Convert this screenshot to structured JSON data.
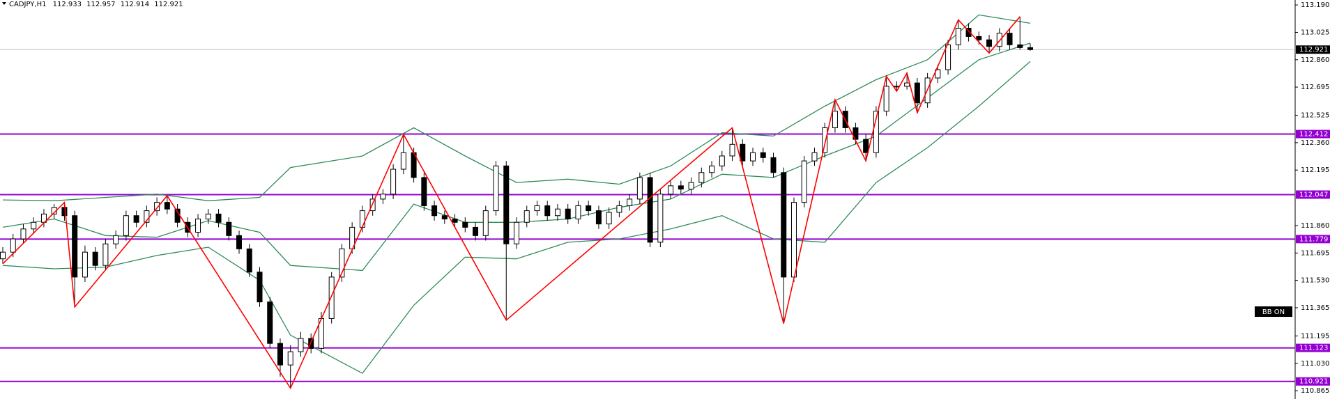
{
  "header": {
    "symbol": "CADJPY,H1",
    "quote": [
      112.933,
      112.957,
      112.914,
      112.921
    ]
  },
  "chart_data": {
    "type": "candlestick",
    "up_color": "#ffffff",
    "down_color": "#000000",
    "open": [
      111.66,
      111.7,
      111.78,
      111.84,
      111.88,
      111.93,
      111.97,
      111.92,
      111.55,
      111.7,
      111.62,
      111.75,
      111.8,
      111.92,
      111.88,
      111.95,
      112.0,
      111.96,
      111.88,
      111.82,
      111.9,
      111.93,
      111.88,
      111.8,
      111.72,
      111.58,
      111.4,
      111.15,
      111.02,
      111.1,
      111.18,
      111.12,
      111.3,
      111.55,
      111.72,
      111.85,
      111.95,
      112.02,
      112.05,
      112.2,
      112.3,
      112.15,
      111.98,
      111.92,
      111.9,
      111.88,
      111.85,
      111.8,
      111.95,
      112.22,
      111.75,
      111.88,
      111.95,
      111.98,
      111.92,
      111.96,
      111.9,
      111.98,
      111.95,
      111.87,
      111.94,
      111.98,
      112.02,
      112.15,
      111.76,
      112.05,
      112.1,
      112.08,
      112.12,
      112.18,
      112.22,
      112.28,
      112.35,
      112.25,
      112.3,
      112.27,
      112.18,
      111.55,
      112.0,
      112.25,
      112.3,
      112.45,
      112.55,
      112.45,
      112.38,
      112.3,
      112.55,
      112.7,
      112.7,
      112.72,
      112.6,
      112.75,
      112.8,
      112.95,
      113.05,
      113.0,
      112.98,
      112.94,
      113.02,
      112.95,
      112.933
    ],
    "high": [
      111.73,
      111.81,
      111.87,
      111.91,
      111.96,
      111.99,
      112.0,
      111.95,
      111.74,
      111.73,
      111.78,
      111.83,
      111.95,
      111.95,
      111.98,
      112.03,
      112.04,
      111.99,
      111.91,
      111.93,
      111.96,
      111.96,
      111.91,
      111.83,
      111.75,
      111.61,
      111.43,
      111.18,
      111.14,
      111.22,
      111.21,
      111.34,
      111.58,
      111.75,
      111.88,
      111.98,
      112.05,
      112.08,
      112.23,
      112.41,
      112.33,
      112.18,
      112.01,
      111.95,
      111.93,
      111.91,
      111.88,
      111.98,
      112.25,
      112.25,
      111.91,
      111.98,
      112.01,
      112.01,
      111.99,
      111.99,
      112.01,
      112.01,
      111.98,
      111.97,
      112.01,
      112.05,
      112.18,
      112.18,
      112.08,
      112.13,
      112.13,
      112.15,
      112.21,
      112.25,
      112.31,
      112.45,
      112.38,
      112.33,
      112.33,
      112.3,
      112.21,
      112.03,
      112.28,
      112.33,
      112.48,
      112.62,
      112.58,
      112.48,
      112.41,
      112.58,
      112.76,
      112.73,
      112.78,
      112.75,
      112.78,
      112.83,
      112.98,
      113.1,
      113.08,
      113.03,
      113.01,
      113.05,
      113.05,
      113.12,
      112.957
    ],
    "low": [
      111.63,
      111.67,
      111.75,
      111.81,
      111.85,
      111.9,
      111.89,
      111.37,
      111.52,
      111.59,
      111.59,
      111.72,
      111.77,
      111.85,
      111.85,
      111.92,
      111.93,
      111.85,
      111.79,
      111.79,
      111.87,
      111.85,
      111.77,
      111.69,
      111.55,
      111.37,
      111.12,
      110.95,
      110.88,
      111.07,
      111.09,
      111.09,
      111.27,
      111.52,
      111.69,
      111.82,
      111.92,
      111.99,
      112.02,
      112.17,
      112.12,
      111.95,
      111.89,
      111.87,
      111.85,
      111.82,
      111.77,
      111.77,
      111.92,
      111.29,
      111.72,
      111.85,
      111.92,
      111.89,
      111.89,
      111.87,
      111.87,
      111.92,
      111.84,
      111.84,
      111.91,
      111.95,
      111.99,
      111.73,
      111.73,
      112.02,
      112.05,
      112.05,
      112.09,
      112.15,
      112.19,
      112.25,
      112.22,
      112.22,
      112.24,
      112.15,
      111.27,
      111.52,
      111.97,
      112.22,
      112.27,
      112.42,
      112.42,
      112.35,
      112.25,
      112.27,
      112.52,
      112.67,
      112.68,
      112.54,
      112.57,
      112.72,
      112.77,
      112.92,
      112.97,
      112.95,
      112.9,
      112.91,
      112.92,
      112.92,
      112.914
    ],
    "close": [
      111.7,
      111.78,
      111.84,
      111.88,
      111.93,
      111.97,
      111.92,
      111.55,
      111.7,
      111.62,
      111.75,
      111.8,
      111.92,
      111.88,
      111.95,
      112.0,
      111.96,
      111.88,
      111.82,
      111.9,
      111.93,
      111.88,
      111.8,
      111.72,
      111.58,
      111.4,
      111.15,
      111.02,
      111.1,
      111.18,
      111.12,
      111.3,
      111.55,
      111.72,
      111.85,
      111.95,
      112.02,
      112.05,
      112.2,
      112.3,
      112.15,
      111.98,
      111.92,
      111.9,
      111.88,
      111.85,
      111.8,
      111.95,
      112.22,
      111.75,
      111.88,
      111.95,
      111.98,
      111.92,
      111.96,
      111.9,
      111.98,
      111.95,
      111.87,
      111.94,
      111.98,
      112.02,
      112.15,
      111.76,
      112.05,
      112.1,
      112.08,
      112.12,
      112.18,
      112.22,
      112.28,
      112.35,
      112.25,
      112.3,
      112.27,
      112.18,
      111.55,
      112.0,
      112.25,
      112.3,
      112.45,
      112.55,
      112.45,
      112.38,
      112.3,
      112.55,
      112.7,
      112.7,
      112.72,
      112.6,
      112.75,
      112.8,
      112.95,
      113.05,
      113.0,
      112.98,
      112.94,
      113.02,
      112.95,
      112.933,
      112.921
    ],
    "ylim": [
      110.815,
      113.22
    ],
    "yticks": [
      {
        "value": 113.19,
        "label": "113.190"
      },
      113.025,
      {
        "value": 112.86,
        "label": "112.860"
      },
      112.695,
      112.525,
      {
        "value": 112.36,
        "label": "112.360"
      },
      112.195,
      {
        "value": 111.86,
        "label": "111.860"
      },
      111.695,
      {
        "value": 111.53,
        "label": "111.530"
      },
      111.365,
      111.195,
      {
        "value": 111.03,
        "label": "111.030"
      },
      110.865
    ],
    "zigzag": {
      "color": "#ff0000",
      "x": [
        0,
        6,
        7,
        16,
        28,
        39,
        49,
        71,
        76,
        81,
        84,
        86,
        87,
        88,
        89,
        93,
        96,
        99
      ],
      "values": [
        111.63,
        112.0,
        111.37,
        112.04,
        110.88,
        112.41,
        111.29,
        112.45,
        111.27,
        112.62,
        112.25,
        112.76,
        112.67,
        112.78,
        112.54,
        113.1,
        112.9,
        113.12
      ]
    },
    "bollinger": {
      "color": "#2e8b57",
      "x": [
        0,
        5,
        10,
        15,
        20,
        25,
        28,
        35,
        40,
        45,
        50,
        55,
        60,
        65,
        70,
        75,
        80,
        85,
        90,
        95,
        100
      ],
      "upper": [
        112.015,
        112.01,
        112.03,
        112.05,
        112.01,
        112.03,
        112.21,
        112.28,
        112.45,
        112.28,
        112.12,
        112.14,
        112.11,
        112.22,
        112.42,
        112.4,
        112.58,
        112.74,
        112.86,
        113.13,
        113.08
      ],
      "middle": [
        111.85,
        111.9,
        111.8,
        111.79,
        111.89,
        111.82,
        111.62,
        111.59,
        111.99,
        111.88,
        111.88,
        111.9,
        111.97,
        112.02,
        112.17,
        112.15,
        112.28,
        112.4,
        112.63,
        112.86,
        112.96
      ],
      "lower": [
        111.62,
        111.6,
        111.61,
        111.68,
        111.73,
        111.53,
        111.2,
        110.97,
        111.38,
        111.67,
        111.66,
        111.76,
        111.78,
        111.84,
        111.92,
        111.78,
        111.76,
        112.12,
        112.33,
        112.58,
        112.85
      ]
    },
    "levels": {
      "color": "#9400d3",
      "values": [
        112.412,
        112.047,
        111.779,
        111.123,
        110.921
      ]
    },
    "last_price": 112.921
  },
  "badge": "BB ON"
}
